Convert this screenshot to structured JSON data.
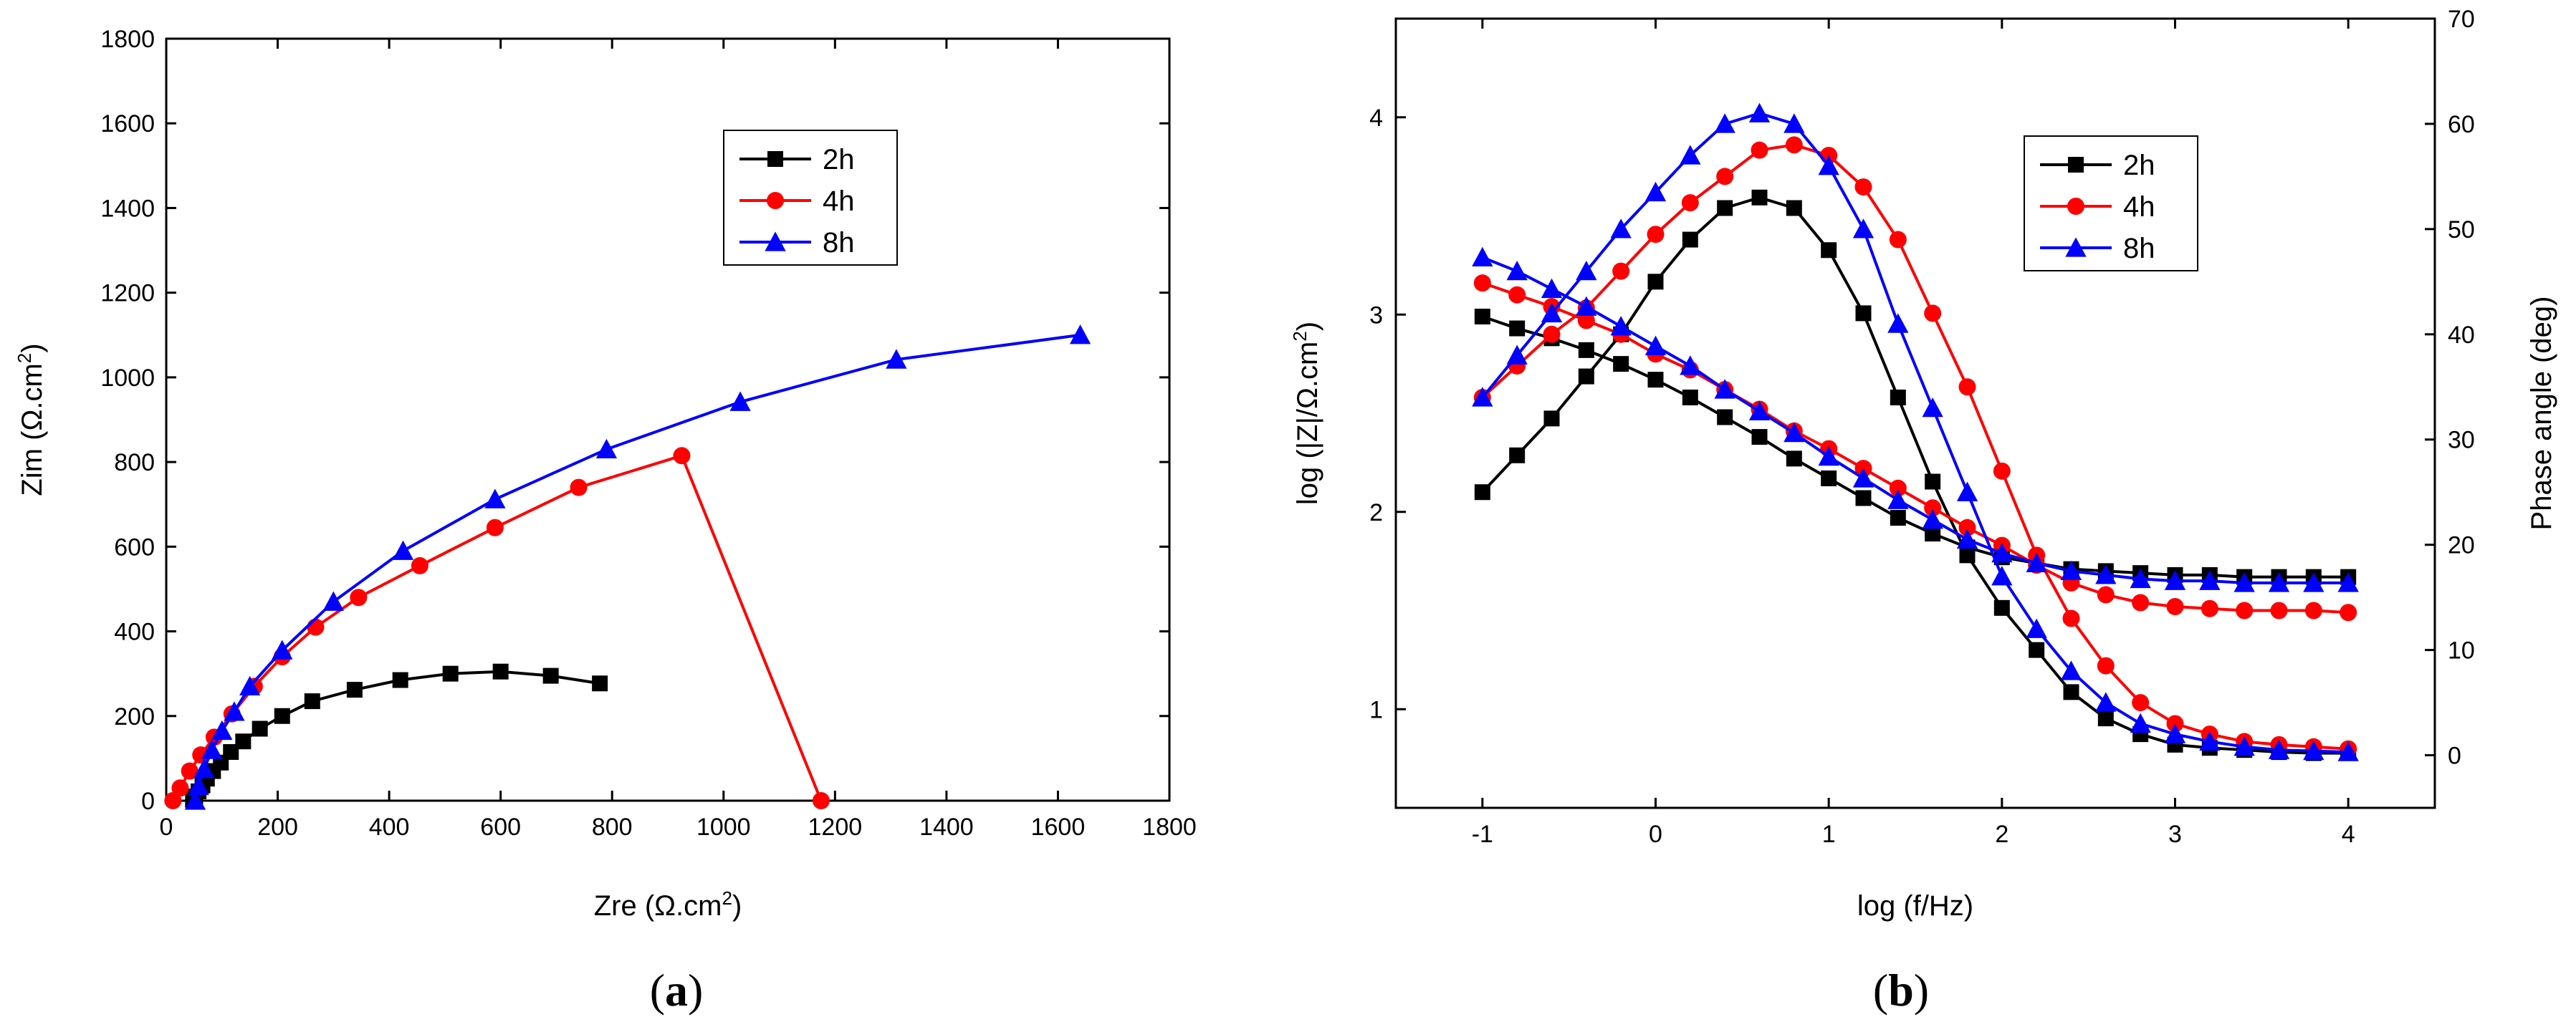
{
  "colors": {
    "2h": "#000000",
    "4h": "#ff0000",
    "8h": "#0000ff"
  },
  "chart_data": [
    {
      "id": "a",
      "type": "scatter",
      "caption": {
        "open": "(",
        "letter": "a",
        "close": ")"
      },
      "title": "",
      "xlabel": {
        "main": "Zre (Ω.cm",
        "sup": "2",
        "tail": ")"
      },
      "ylabel": {
        "main": "Zim (Ω.cm",
        "sup": "2",
        "tail": ")"
      },
      "xlim": [
        0,
        1800
      ],
      "ylim": [
        0,
        1800
      ],
      "xticks": [
        "0",
        "200",
        "400",
        "600",
        "800",
        "1000",
        "1200",
        "1400",
        "1600",
        "1800"
      ],
      "yticks": [
        "0",
        "200",
        "400",
        "600",
        "800",
        "1000",
        "1200",
        "1400",
        "1600",
        "1800"
      ],
      "legend": {
        "position": "top-center",
        "entries": [
          "2h",
          "4h",
          "8h"
        ]
      },
      "series": [
        {
          "name": "2h",
          "marker": "square",
          "x": [
            48,
            52,
            58,
            65,
            73,
            84,
            98,
            116,
            138,
            168,
            208,
            262,
            338,
            420,
            510,
            600,
            690,
            778
          ],
          "y": [
            2,
            10,
            22,
            36,
            52,
            70,
            90,
            115,
            140,
            170,
            200,
            235,
            262,
            285,
            300,
            305,
            295,
            277
          ]
        },
        {
          "name": "4h",
          "marker": "circle",
          "x": [
            12,
            25,
            42,
            62,
            86,
            118,
            158,
            208,
            268,
            345,
            455,
            590,
            740,
            925,
            1175
          ],
          "y": [
            0,
            30,
            70,
            108,
            150,
            205,
            270,
            340,
            410,
            480,
            555,
            645,
            740,
            815,
            0
          ]
        },
        {
          "name": "8h",
          "marker": "triangle",
          "x": [
            52,
            58,
            68,
            82,
            100,
            122,
            150,
            208,
            300,
            425,
            590,
            790,
            1030,
            1310,
            1640
          ],
          "y": [
            0,
            35,
            75,
            120,
            165,
            210,
            270,
            355,
            470,
            590,
            712,
            830,
            942,
            1042,
            1100
          ]
        }
      ]
    },
    {
      "id": "b",
      "type": "scatter",
      "caption": {
        "open": "(",
        "letter": "b",
        "close": ")"
      },
      "title": "",
      "xlabel": {
        "main": "log (f/Hz)",
        "sup": "",
        "tail": ""
      },
      "ylabel": {
        "main": "log (|Z|/Ω.cm",
        "sup": "2",
        "tail": ")"
      },
      "y2label": "Phase angle (deg)",
      "xlim": [
        -1.5,
        4.5
      ],
      "ylim": [
        0.5,
        4.5
      ],
      "y2lim": [
        -5,
        70
      ],
      "xticks": [
        "-1",
        "0",
        "1",
        "2",
        "3",
        "4"
      ],
      "yticks": [
        "1",
        "2",
        "3",
        "4"
      ],
      "y2ticks": [
        "0",
        "10",
        "20",
        "30",
        "40",
        "50",
        "60",
        "70"
      ],
      "legend": {
        "position": "top-right",
        "entries": [
          "2h",
          "4h",
          "8h"
        ]
      },
      "x": [
        -1.0,
        -0.8,
        -0.6,
        -0.4,
        -0.2,
        0.0,
        0.2,
        0.4,
        0.6,
        0.8,
        1.0,
        1.2,
        1.4,
        1.6,
        1.8,
        2.0,
        2.2,
        2.4,
        2.6,
        2.8,
        3.0,
        3.2,
        3.4,
        3.6,
        3.8,
        4.0
      ],
      "series": [
        {
          "name": "2h |Z|",
          "legend": "2h",
          "axis": "left",
          "marker": "square",
          "y": [
            2.99,
            2.93,
            2.88,
            2.82,
            2.75,
            2.67,
            2.58,
            2.48,
            2.38,
            2.27,
            2.17,
            2.07,
            1.97,
            1.89,
            1.82,
            1.77,
            1.74,
            1.71,
            1.7,
            1.69,
            1.68,
            1.68,
            1.67,
            1.67,
            1.67,
            1.67
          ]
        },
        {
          "name": "2h phase",
          "legend": "2h",
          "axis": "right",
          "marker": "square",
          "y": [
            25,
            28.5,
            32,
            36,
            40,
            45,
            49,
            52,
            53,
            52,
            48,
            42,
            34,
            26,
            19,
            14,
            10,
            6,
            3.5,
            2,
            1,
            0.7,
            0.5,
            0.3,
            0.2,
            0.2
          ]
        },
        {
          "name": "4h |Z|",
          "legend": "4h",
          "axis": "left",
          "marker": "circle",
          "y": [
            3.16,
            3.1,
            3.04,
            2.97,
            2.9,
            2.8,
            2.72,
            2.62,
            2.52,
            2.41,
            2.32,
            2.22,
            2.12,
            2.02,
            1.92,
            1.83,
            1.73,
            1.64,
            1.58,
            1.54,
            1.52,
            1.51,
            1.5,
            1.5,
            1.5,
            1.49
          ]
        },
        {
          "name": "4h phase",
          "legend": "4h",
          "axis": "right",
          "marker": "circle",
          "y": [
            34,
            37,
            40,
            42.5,
            46,
            49.5,
            52.5,
            55,
            57.5,
            58,
            57,
            54,
            49,
            42,
            35,
            27,
            19,
            13,
            8.5,
            5,
            3,
            2,
            1.3,
            1,
            0.8,
            0.6
          ]
        },
        {
          "name": "8h |Z|",
          "legend": "8h",
          "axis": "left",
          "marker": "triangle",
          "y": [
            3.29,
            3.22,
            3.13,
            3.04,
            2.94,
            2.84,
            2.74,
            2.62,
            2.51,
            2.4,
            2.28,
            2.17,
            2.06,
            1.96,
            1.86,
            1.79,
            1.74,
            1.7,
            1.68,
            1.66,
            1.65,
            1.65,
            1.64,
            1.64,
            1.64,
            1.64
          ]
        },
        {
          "name": "8h phase",
          "legend": "8h",
          "axis": "right",
          "marker": "triangle",
          "y": [
            34,
            38,
            42,
            46,
            50,
            53.5,
            57,
            60,
            61,
            60,
            56,
            50,
            41,
            33,
            25,
            17,
            12,
            8,
            5,
            3,
            2,
            1.3,
            0.8,
            0.5,
            0.4,
            0.3
          ]
        }
      ]
    }
  ]
}
